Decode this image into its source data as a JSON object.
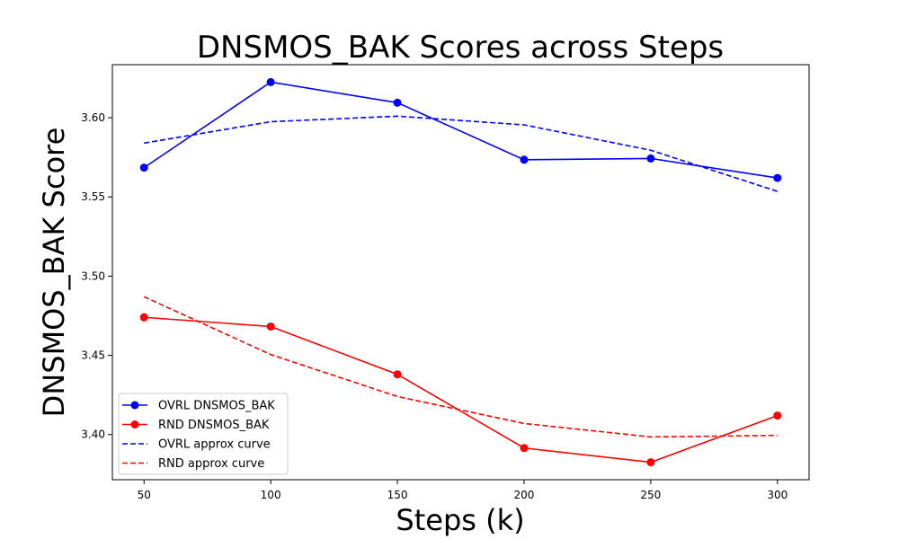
{
  "chart_data": {
    "type": "line",
    "title": "DNSMOS_BAK Scores across Steps",
    "xlabel": "Steps (k)",
    "ylabel": "DNSMOS_BAK Score",
    "x": [
      50,
      100,
      150,
      200,
      250,
      300
    ],
    "xticks": [
      "50",
      "100",
      "150",
      "200",
      "250",
      "300"
    ],
    "yticks": [
      "3.40",
      "3.45",
      "3.50",
      "3.55",
      "3.60"
    ],
    "xlim": [
      37.5,
      312.5
    ],
    "ylim": [
      3.3715,
      3.6335
    ],
    "grid": false,
    "legend_position": "lower-left",
    "series": [
      {
        "name": "OVRL DNSMOS_BAK",
        "color": "#0000ff",
        "style": "solid",
        "marker": "circle",
        "values": [
          3.5685,
          3.6225,
          3.6095,
          3.5735,
          3.5743,
          3.562
        ]
      },
      {
        "name": "RND DNSMOS_BAK",
        "color": "#ff0000",
        "style": "solid",
        "marker": "circle",
        "values": [
          3.474,
          3.4682,
          3.438,
          3.3915,
          3.3825,
          3.412
        ]
      },
      {
        "name": "OVRL approx curve",
        "color": "#0000ff",
        "style": "dashed",
        "marker": "none",
        "values": [
          3.584,
          3.5975,
          3.601,
          3.5955,
          3.5795,
          3.5535
        ]
      },
      {
        "name": "RND approx curve",
        "color": "#ff0000",
        "style": "dashed",
        "marker": "none",
        "values": [
          3.487,
          3.4505,
          3.424,
          3.407,
          3.3985,
          3.3995
        ]
      }
    ]
  }
}
